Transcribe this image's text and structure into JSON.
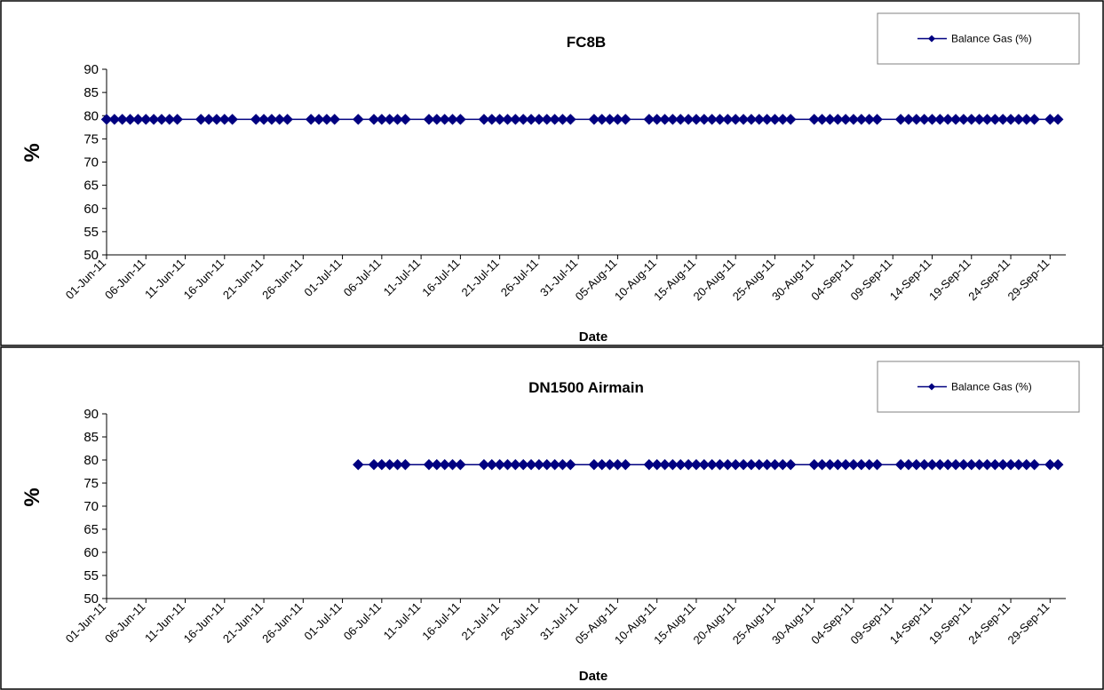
{
  "chart_data": [
    {
      "type": "line",
      "title": "FC8B",
      "xlabel": "Date",
      "ylabel": "%",
      "ylim": [
        50,
        90
      ],
      "yticks": [
        50,
        55,
        60,
        65,
        70,
        75,
        80,
        85,
        90
      ],
      "grid": false,
      "legend_position": "top-right",
      "x_range": [
        "2011-06-01",
        "2011-10-01"
      ],
      "xtick_labels": [
        "01-Jun-11",
        "06-Jun-11",
        "11-Jun-11",
        "16-Jun-11",
        "21-Jun-11",
        "26-Jun-11",
        "01-Jul-11",
        "06-Jul-11",
        "11-Jul-11",
        "16-Jul-11",
        "21-Jul-11",
        "26-Jul-11",
        "31-Jul-11",
        "05-Aug-11",
        "10-Aug-11",
        "15-Aug-11",
        "20-Aug-11",
        "25-Aug-11",
        "30-Aug-11",
        "04-Sep-11",
        "09-Sep-11",
        "14-Sep-11",
        "19-Sep-11",
        "24-Sep-11",
        "29-Sep-11"
      ],
      "series": [
        {
          "name": "Balance Gas (%)",
          "color": "#000080",
          "marker": "diamond",
          "x": [
            "2011-06-01",
            "2011-06-02",
            "2011-06-03",
            "2011-06-04",
            "2011-06-05",
            "2011-06-06",
            "2011-06-07",
            "2011-06-08",
            "2011-06-09",
            "2011-06-10",
            "2011-06-13",
            "2011-06-14",
            "2011-06-15",
            "2011-06-16",
            "2011-06-17",
            "2011-06-20",
            "2011-06-21",
            "2011-06-22",
            "2011-06-23",
            "2011-06-24",
            "2011-06-27",
            "2011-06-28",
            "2011-06-29",
            "2011-06-30",
            "2011-07-03",
            "2011-07-05",
            "2011-07-06",
            "2011-07-07",
            "2011-07-08",
            "2011-07-09",
            "2011-07-12",
            "2011-07-13",
            "2011-07-14",
            "2011-07-15",
            "2011-07-16",
            "2011-07-19",
            "2011-07-20",
            "2011-07-21",
            "2011-07-22",
            "2011-07-23",
            "2011-07-24",
            "2011-07-25",
            "2011-07-26",
            "2011-07-27",
            "2011-07-28",
            "2011-07-29",
            "2011-07-30",
            "2011-08-02",
            "2011-08-03",
            "2011-08-04",
            "2011-08-05",
            "2011-08-06",
            "2011-08-09",
            "2011-08-10",
            "2011-08-11",
            "2011-08-12",
            "2011-08-13",
            "2011-08-14",
            "2011-08-15",
            "2011-08-16",
            "2011-08-17",
            "2011-08-18",
            "2011-08-19",
            "2011-08-20",
            "2011-08-21",
            "2011-08-22",
            "2011-08-23",
            "2011-08-24",
            "2011-08-25",
            "2011-08-26",
            "2011-08-27",
            "2011-08-30",
            "2011-08-31",
            "2011-09-01",
            "2011-09-02",
            "2011-09-03",
            "2011-09-04",
            "2011-09-05",
            "2011-09-06",
            "2011-09-07",
            "2011-09-10",
            "2011-09-11",
            "2011-09-12",
            "2011-09-13",
            "2011-09-14",
            "2011-09-15",
            "2011-09-16",
            "2011-09-17",
            "2011-09-18",
            "2011-09-19",
            "2011-09-20",
            "2011-09-21",
            "2011-09-22",
            "2011-09-23",
            "2011-09-24",
            "2011-09-25",
            "2011-09-26",
            "2011-09-27",
            "2011-09-29",
            "2011-09-30"
          ],
          "y": [
            79.2,
            79.2,
            79.2,
            79.2,
            79.2,
            79.2,
            79.2,
            79.2,
            79.2,
            79.2,
            79.2,
            79.2,
            79.2,
            79.2,
            79.2,
            79.2,
            79.2,
            79.2,
            79.2,
            79.2,
            79.2,
            79.2,
            79.2,
            79.2,
            79.2,
            79.2,
            79.2,
            79.2,
            79.2,
            79.2,
            79.2,
            79.2,
            79.2,
            79.2,
            79.2,
            79.2,
            79.2,
            79.2,
            79.2,
            79.2,
            79.2,
            79.2,
            79.2,
            79.2,
            79.2,
            79.2,
            79.2,
            79.2,
            79.2,
            79.2,
            79.2,
            79.2,
            79.2,
            79.2,
            79.2,
            79.2,
            79.2,
            79.2,
            79.2,
            79.2,
            79.2,
            79.2,
            79.2,
            79.2,
            79.2,
            79.2,
            79.2,
            79.2,
            79.2,
            79.2,
            79.2,
            79.2,
            79.2,
            79.2,
            79.2,
            79.2,
            79.2,
            79.2,
            79.2,
            79.2,
            79.2,
            79.2,
            79.2,
            79.2,
            79.2,
            79.2,
            79.2,
            79.2,
            79.2,
            79.2,
            79.2,
            79.2,
            79.2,
            79.2,
            79.2,
            79.2,
            79.2,
            79.2,
            79.2,
            79.2
          ]
        }
      ]
    },
    {
      "type": "line",
      "title": "DN1500 Airmain",
      "xlabel": "Date",
      "ylabel": "%",
      "ylim": [
        50,
        90
      ],
      "yticks": [
        50,
        55,
        60,
        65,
        70,
        75,
        80,
        85,
        90
      ],
      "grid": false,
      "legend_position": "top-right",
      "x_range": [
        "2011-06-01",
        "2011-10-01"
      ],
      "xtick_labels": [
        "01-Jun-11",
        "06-Jun-11",
        "11-Jun-11",
        "16-Jun-11",
        "21-Jun-11",
        "26-Jun-11",
        "01-Jul-11",
        "06-Jul-11",
        "11-Jul-11",
        "16-Jul-11",
        "21-Jul-11",
        "26-Jul-11",
        "31-Jul-11",
        "05-Aug-11",
        "10-Aug-11",
        "15-Aug-11",
        "20-Aug-11",
        "25-Aug-11",
        "30-Aug-11",
        "04-Sep-11",
        "09-Sep-11",
        "14-Sep-11",
        "19-Sep-11",
        "24-Sep-11",
        "29-Sep-11"
      ],
      "series": [
        {
          "name": "Balance Gas (%)",
          "color": "#000080",
          "marker": "diamond",
          "x": [
            "2011-07-03",
            "2011-07-05",
            "2011-07-06",
            "2011-07-07",
            "2011-07-08",
            "2011-07-09",
            "2011-07-12",
            "2011-07-13",
            "2011-07-14",
            "2011-07-15",
            "2011-07-16",
            "2011-07-19",
            "2011-07-20",
            "2011-07-21",
            "2011-07-22",
            "2011-07-23",
            "2011-07-24",
            "2011-07-25",
            "2011-07-26",
            "2011-07-27",
            "2011-07-28",
            "2011-07-29",
            "2011-07-30",
            "2011-08-02",
            "2011-08-03",
            "2011-08-04",
            "2011-08-05",
            "2011-08-06",
            "2011-08-09",
            "2011-08-10",
            "2011-08-11",
            "2011-08-12",
            "2011-08-13",
            "2011-08-14",
            "2011-08-15",
            "2011-08-16",
            "2011-08-17",
            "2011-08-18",
            "2011-08-19",
            "2011-08-20",
            "2011-08-21",
            "2011-08-22",
            "2011-08-23",
            "2011-08-24",
            "2011-08-25",
            "2011-08-26",
            "2011-08-27",
            "2011-08-30",
            "2011-08-31",
            "2011-09-01",
            "2011-09-02",
            "2011-09-03",
            "2011-09-04",
            "2011-09-05",
            "2011-09-06",
            "2011-09-07",
            "2011-09-10",
            "2011-09-11",
            "2011-09-12",
            "2011-09-13",
            "2011-09-14",
            "2011-09-15",
            "2011-09-16",
            "2011-09-17",
            "2011-09-18",
            "2011-09-19",
            "2011-09-20",
            "2011-09-21",
            "2011-09-22",
            "2011-09-23",
            "2011-09-24",
            "2011-09-25",
            "2011-09-26",
            "2011-09-27",
            "2011-09-29",
            "2011-09-30"
          ],
          "y": [
            79,
            79,
            79,
            79,
            79,
            79,
            79,
            79,
            79,
            79,
            79,
            79,
            79,
            79,
            79,
            79,
            79,
            79,
            79,
            79,
            79,
            79,
            79,
            79,
            79,
            79,
            79,
            79,
            79,
            79,
            79,
            79,
            79,
            79,
            79,
            79,
            79,
            79,
            79,
            79,
            79,
            79,
            79,
            79,
            79,
            79,
            79,
            79,
            79,
            79,
            79,
            79,
            79,
            79,
            79,
            79,
            79,
            79,
            79,
            79,
            79,
            79,
            79,
            79,
            79,
            79,
            79,
            79,
            79,
            79,
            79,
            79,
            79,
            79,
            79,
            79
          ]
        }
      ]
    }
  ]
}
